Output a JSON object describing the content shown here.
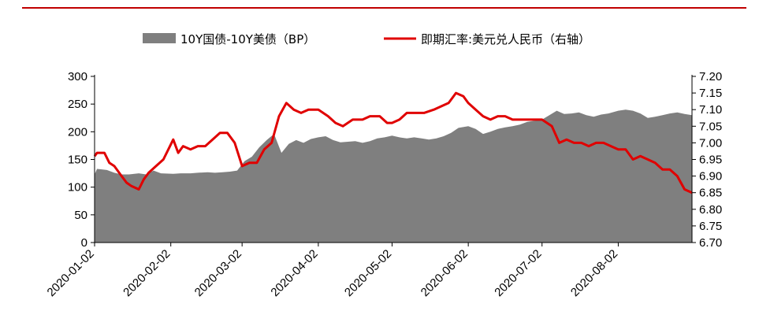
{
  "chart_data": {
    "type": "area+line",
    "title": "",
    "xlabel": "",
    "ylabel": "",
    "y2label": "",
    "grid": false,
    "legend_placement": "top-center",
    "x_ticks": [
      "2020-01-02",
      "2020-02-02",
      "2020-03-02",
      "2020-04-02",
      "2020-05-02",
      "2020-06-02",
      "2020-07-02",
      "2020-08-02"
    ],
    "y_left": {
      "min": 0,
      "max": 300,
      "ticks": [
        0,
        50,
        100,
        150,
        200,
        250,
        300
      ]
    },
    "y_right": {
      "min": 6.7,
      "max": 7.2,
      "ticks": [
        "6.70",
        "6.75",
        "6.80",
        "6.85",
        "6.90",
        "6.95",
        "7.00",
        "7.05",
        "7.10",
        "7.15",
        "7.20"
      ]
    },
    "series": [
      {
        "name": "10Y国债-10Y美债（BP）",
        "type": "area",
        "axis": "left",
        "color": "#7f7f7f",
        "points": [
          [
            "2020-01-02",
            123
          ],
          [
            "2020-01-03",
            133
          ],
          [
            "2020-01-07",
            131
          ],
          [
            "2020-01-10",
            126
          ],
          [
            "2020-01-13",
            123
          ],
          [
            "2020-01-16",
            123
          ],
          [
            "2020-01-20",
            125
          ],
          [
            "2020-01-23",
            123
          ],
          [
            "2020-01-26",
            130
          ],
          [
            "2020-01-29",
            125
          ],
          [
            "2020-02-03",
            124
          ],
          [
            "2020-02-06",
            125
          ],
          [
            "2020-02-10",
            125
          ],
          [
            "2020-02-13",
            126
          ],
          [
            "2020-02-17",
            127
          ],
          [
            "2020-02-20",
            126
          ],
          [
            "2020-02-23",
            127
          ],
          [
            "2020-02-26",
            128
          ],
          [
            "2020-02-29",
            130
          ],
          [
            "2020-03-03",
            147
          ],
          [
            "2020-03-06",
            155
          ],
          [
            "2020-03-09",
            172
          ],
          [
            "2020-03-12",
            185
          ],
          [
            "2020-03-15",
            196
          ],
          [
            "2020-03-18",
            162
          ],
          [
            "2020-03-21",
            178
          ],
          [
            "2020-03-24",
            185
          ],
          [
            "2020-03-27",
            180
          ],
          [
            "2020-03-30",
            187
          ],
          [
            "2020-04-02",
            190
          ],
          [
            "2020-04-05",
            192
          ],
          [
            "2020-04-08",
            185
          ],
          [
            "2020-04-11",
            181
          ],
          [
            "2020-04-14",
            182
          ],
          [
            "2020-04-17",
            183
          ],
          [
            "2020-04-20",
            180
          ],
          [
            "2020-04-23",
            183
          ],
          [
            "2020-04-26",
            188
          ],
          [
            "2020-04-29",
            190
          ],
          [
            "2020-05-02",
            193
          ],
          [
            "2020-05-05",
            190
          ],
          [
            "2020-05-08",
            188
          ],
          [
            "2020-05-11",
            190
          ],
          [
            "2020-05-14",
            188
          ],
          [
            "2020-05-17",
            186
          ],
          [
            "2020-05-20",
            188
          ],
          [
            "2020-05-23",
            192
          ],
          [
            "2020-05-26",
            198
          ],
          [
            "2020-05-29",
            207
          ],
          [
            "2020-06-02",
            210
          ],
          [
            "2020-06-05",
            205
          ],
          [
            "2020-06-08",
            196
          ],
          [
            "2020-06-11",
            200
          ],
          [
            "2020-06-14",
            205
          ],
          [
            "2020-06-17",
            208
          ],
          [
            "2020-06-20",
            210
          ],
          [
            "2020-06-23",
            213
          ],
          [
            "2020-06-26",
            218
          ],
          [
            "2020-06-29",
            220
          ],
          [
            "2020-07-02",
            222
          ],
          [
            "2020-07-05",
            230
          ],
          [
            "2020-07-08",
            238
          ],
          [
            "2020-07-11",
            232
          ],
          [
            "2020-07-14",
            233
          ],
          [
            "2020-07-17",
            235
          ],
          [
            "2020-07-20",
            230
          ],
          [
            "2020-07-23",
            227
          ],
          [
            "2020-07-26",
            231
          ],
          [
            "2020-07-29",
            233
          ],
          [
            "2020-08-02",
            238
          ],
          [
            "2020-08-05",
            240
          ],
          [
            "2020-08-08",
            238
          ],
          [
            "2020-08-11",
            233
          ],
          [
            "2020-08-14",
            225
          ],
          [
            "2020-08-17",
            227
          ],
          [
            "2020-08-20",
            230
          ],
          [
            "2020-08-23",
            233
          ],
          [
            "2020-08-26",
            235
          ],
          [
            "2020-08-29",
            232
          ],
          [
            "2020-09-01",
            230
          ]
        ]
      },
      {
        "name": "即期汇率:美元兑人民币（右轴）",
        "type": "line",
        "axis": "right",
        "color": "#e00000",
        "points": [
          [
            "2020-01-02",
            6.96
          ],
          [
            "2020-01-03",
            6.97
          ],
          [
            "2020-01-06",
            6.97
          ],
          [
            "2020-01-08",
            6.94
          ],
          [
            "2020-01-10",
            6.93
          ],
          [
            "2020-01-13",
            6.9
          ],
          [
            "2020-01-15",
            6.88
          ],
          [
            "2020-01-17",
            6.87
          ],
          [
            "2020-01-20",
            6.86
          ],
          [
            "2020-01-22",
            6.89
          ],
          [
            "2020-01-24",
            6.91
          ],
          [
            "2020-01-27",
            6.93
          ],
          [
            "2020-01-30",
            6.95
          ],
          [
            "2020-02-03",
            7.01
          ],
          [
            "2020-02-05",
            6.97
          ],
          [
            "2020-02-07",
            6.99
          ],
          [
            "2020-02-10",
            6.98
          ],
          [
            "2020-02-13",
            6.99
          ],
          [
            "2020-02-16",
            6.99
          ],
          [
            "2020-02-19",
            7.01
          ],
          [
            "2020-02-22",
            7.03
          ],
          [
            "2020-02-25",
            7.03
          ],
          [
            "2020-02-28",
            7.0
          ],
          [
            "2020-03-02",
            6.93
          ],
          [
            "2020-03-05",
            6.94
          ],
          [
            "2020-03-08",
            6.94
          ],
          [
            "2020-03-11",
            6.98
          ],
          [
            "2020-03-14",
            7.0
          ],
          [
            "2020-03-17",
            7.08
          ],
          [
            "2020-03-20",
            7.12
          ],
          [
            "2020-03-23",
            7.1
          ],
          [
            "2020-03-26",
            7.09
          ],
          [
            "2020-03-29",
            7.1
          ],
          [
            "2020-04-02",
            7.1
          ],
          [
            "2020-04-06",
            7.08
          ],
          [
            "2020-04-09",
            7.06
          ],
          [
            "2020-04-12",
            7.05
          ],
          [
            "2020-04-16",
            7.07
          ],
          [
            "2020-04-20",
            7.07
          ],
          [
            "2020-04-23",
            7.08
          ],
          [
            "2020-04-27",
            7.08
          ],
          [
            "2020-04-30",
            7.06
          ],
          [
            "2020-05-02",
            7.06
          ],
          [
            "2020-05-05",
            7.07
          ],
          [
            "2020-05-08",
            7.09
          ],
          [
            "2020-05-12",
            7.09
          ],
          [
            "2020-05-15",
            7.09
          ],
          [
            "2020-05-19",
            7.1
          ],
          [
            "2020-05-22",
            7.11
          ],
          [
            "2020-05-25",
            7.12
          ],
          [
            "2020-05-28",
            7.15
          ],
          [
            "2020-05-31",
            7.14
          ],
          [
            "2020-06-02",
            7.12
          ],
          [
            "2020-06-05",
            7.1
          ],
          [
            "2020-06-08",
            7.08
          ],
          [
            "2020-06-11",
            7.07
          ],
          [
            "2020-06-14",
            7.08
          ],
          [
            "2020-06-17",
            7.08
          ],
          [
            "2020-06-20",
            7.07
          ],
          [
            "2020-06-24",
            7.07
          ],
          [
            "2020-06-28",
            7.07
          ],
          [
            "2020-07-02",
            7.07
          ],
          [
            "2020-07-06",
            7.05
          ],
          [
            "2020-07-09",
            7.0
          ],
          [
            "2020-07-12",
            7.01
          ],
          [
            "2020-07-15",
            7.0
          ],
          [
            "2020-07-18",
            7.0
          ],
          [
            "2020-07-21",
            6.99
          ],
          [
            "2020-07-24",
            7.0
          ],
          [
            "2020-07-27",
            7.0
          ],
          [
            "2020-07-30",
            6.99
          ],
          [
            "2020-08-02",
            6.98
          ],
          [
            "2020-08-05",
            6.98
          ],
          [
            "2020-08-08",
            6.95
          ],
          [
            "2020-08-11",
            6.96
          ],
          [
            "2020-08-14",
            6.95
          ],
          [
            "2020-08-17",
            6.94
          ],
          [
            "2020-08-20",
            6.92
          ],
          [
            "2020-08-23",
            6.92
          ],
          [
            "2020-08-26",
            6.9
          ],
          [
            "2020-08-29",
            6.86
          ],
          [
            "2020-09-01",
            6.85
          ]
        ]
      }
    ]
  }
}
